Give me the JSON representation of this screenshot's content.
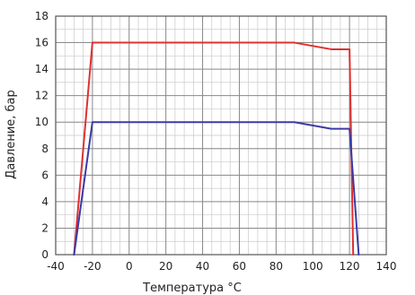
{
  "chart_data": {
    "type": "line",
    "xlabel": "Температура °C",
    "ylabel": "Давление,  бар",
    "xlim": [
      -40,
      140
    ],
    "ylim": [
      0,
      18
    ],
    "x_ticks": [
      -40,
      -20,
      0,
      20,
      40,
      60,
      80,
      100,
      120,
      140
    ],
    "y_ticks": [
      0,
      2,
      4,
      6,
      8,
      10,
      12,
      14,
      16,
      18
    ],
    "x_minor_step": 5,
    "y_minor_step": 1,
    "grid": true,
    "series": [
      {
        "color": "#e03030",
        "points": [
          [
            -30,
            0
          ],
          [
            -20,
            16
          ],
          [
            90,
            16
          ],
          [
            110,
            15.5
          ],
          [
            120,
            15.5
          ],
          [
            122,
            0
          ]
        ]
      },
      {
        "color": "#3a3aa8",
        "points": [
          [
            -30,
            0
          ],
          [
            -20,
            10
          ],
          [
            90,
            10
          ],
          [
            110,
            9.5
          ],
          [
            120,
            9.5
          ],
          [
            125,
            0
          ]
        ]
      }
    ]
  }
}
